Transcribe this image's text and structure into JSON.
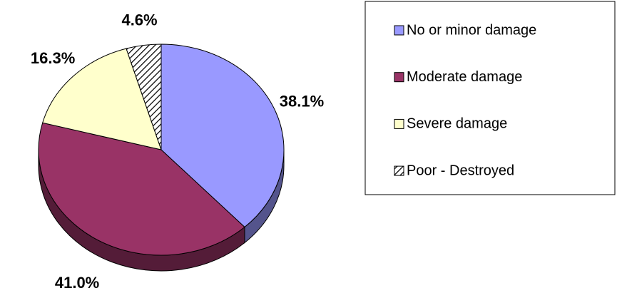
{
  "chart_data": {
    "type": "pie3d",
    "categories": [
      "No or minor damage",
      "Moderate damage",
      "Severe damage",
      "Poor - Destroyed"
    ],
    "values": [
      38.1,
      41.0,
      16.3,
      4.6
    ],
    "value_labels": [
      "38.1%",
      "41.0%",
      "16.3%",
      "4.6%"
    ],
    "colors": [
      "#9999ff",
      "#993366",
      "#ffffcc",
      "#ffffff"
    ],
    "hatched_index": 3,
    "legend": "right"
  }
}
